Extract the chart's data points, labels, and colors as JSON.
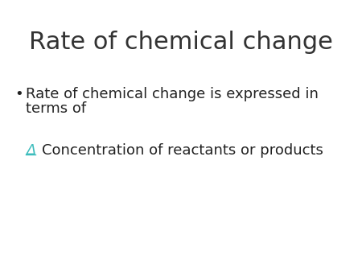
{
  "title": "Rate of chemical change",
  "title_fontsize": 22,
  "background_color": "#ffffff",
  "bullet_text_line1": "Rate of chemical change is expressed in",
  "bullet_text_line2": "terms of",
  "body_fontsize": 13,
  "sub_text": "Concentration of reactants or products",
  "bullet_color": "#222222",
  "delta_color": "#3dbdbd",
  "text_color": "#222222",
  "title_color": "#333333"
}
